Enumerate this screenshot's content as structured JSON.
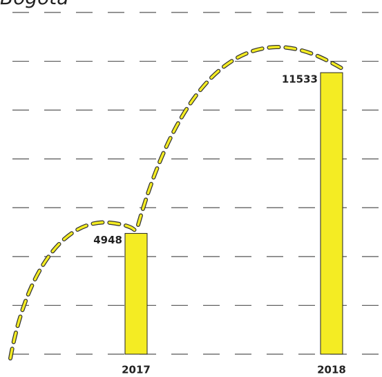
{
  "chart_data": {
    "type": "bar",
    "title": "Bogota",
    "categories": [
      "2017",
      "2018"
    ],
    "values": [
      4948,
      11533
    ],
    "color": "#f4ec23",
    "ylim": [
      0,
      14000
    ],
    "yticks": [
      0,
      2000,
      4000,
      6000,
      8000,
      10000,
      12000,
      14000
    ],
    "grid": true
  }
}
